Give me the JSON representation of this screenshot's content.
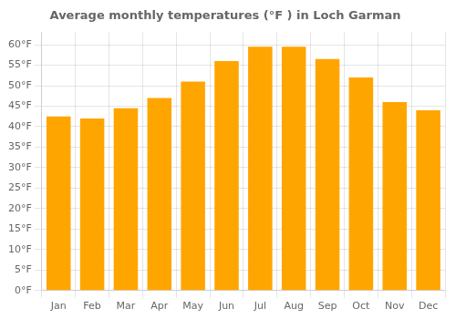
{
  "chart_data": {
    "type": "bar",
    "title": "Average monthly temperatures (°F ) in Loch Garman",
    "categories": [
      "Jan",
      "Feb",
      "Mar",
      "Apr",
      "May",
      "Jun",
      "Jul",
      "Aug",
      "Sep",
      "Oct",
      "Nov",
      "Dec"
    ],
    "values": [
      42.5,
      42.0,
      44.5,
      47.0,
      51.0,
      56.0,
      59.5,
      59.5,
      56.5,
      52.0,
      46.0,
      44.0
    ],
    "color": "#FFA500",
    "ylim": [
      0,
      63
    ],
    "yticks": [
      {
        "value": 0,
        "label": "0°F"
      },
      {
        "value": 5,
        "label": "5°F"
      },
      {
        "value": 10,
        "label": "10°F"
      },
      {
        "value": 15,
        "label": "15°F"
      },
      {
        "value": 20,
        "label": "20°F"
      },
      {
        "value": 25,
        "label": "25°F"
      },
      {
        "value": 30,
        "label": "30°F"
      },
      {
        "value": 35,
        "label": "35°F"
      },
      {
        "value": 40,
        "label": "40°F"
      },
      {
        "value": 45,
        "label": "45°F"
      },
      {
        "value": 50,
        "label": "50°F"
      },
      {
        "value": 55,
        "label": "55°F"
      },
      {
        "value": 60,
        "label": "60°F"
      }
    ],
    "grid": true
  }
}
